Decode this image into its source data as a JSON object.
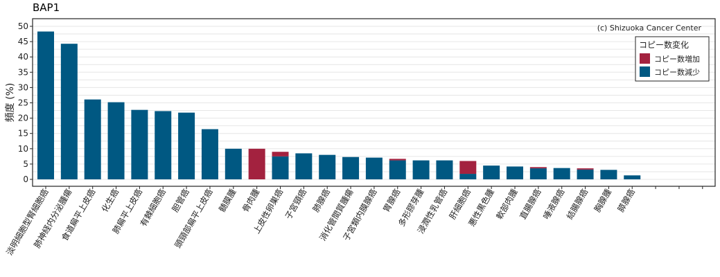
{
  "title": "BAP1",
  "credit": "(c) Shizuoka Cancer Center",
  "colors": {
    "gain": "#a3223f",
    "loss": "#005882",
    "grid": "#e6e6e6"
  },
  "chart_data": {
    "type": "bar",
    "stacked": true,
    "ylabel": "頻度 (%)",
    "ylim": [
      0,
      52
    ],
    "yticks": [
      0,
      5,
      10,
      15,
      20,
      25,
      30,
      35,
      40,
      45,
      50
    ],
    "grid": true,
    "legend": {
      "title": "コピー数変化",
      "placement": "top-right"
    },
    "categories": [
      "淡明細胞型腎細胞癌",
      "肺神経内分泌腫瘍",
      "食道扁平上皮癌",
      "化生癌",
      "肺扁平上皮癌",
      "有棘細胞癌",
      "胆管癌",
      "頭頸部扁平上皮癌",
      "髄膜腫",
      "骨肉腫",
      "上皮性卵巣癌",
      "子宮頸癌",
      "肺腺癌",
      "消化管間質腫瘍",
      "子宮類内膜腺癌",
      "胃腺癌",
      "多形膠芽腫",
      "浸潤性乳管癌",
      "肝細胞癌",
      "悪性黒色腫",
      "軟部肉腫",
      "直腸腺癌",
      "唾液腺癌",
      "結腸腺癌",
      "胸腺腫",
      "膵腺癌",
      "",
      "",
      "",
      ""
    ],
    "series": [
      {
        "name": "コピー数増加",
        "values": [
          0,
          0,
          0,
          0,
          0,
          0,
          0,
          0,
          0,
          10,
          1.5,
          0,
          0,
          0,
          0,
          0.5,
          0,
          0,
          4.2,
          0,
          0,
          0.4,
          0,
          0.4,
          0,
          0,
          0,
          0,
          0,
          0
        ]
      },
      {
        "name": "コピー数減少",
        "values": [
          48.3,
          44.3,
          26.1,
          25.2,
          22.7,
          22.3,
          21.8,
          16.4,
          10,
          0,
          7.5,
          8.5,
          8,
          7.3,
          7.1,
          6.2,
          6.2,
          6.2,
          1.8,
          4.5,
          4.2,
          3.6,
          3.7,
          3.2,
          3.1,
          1.3,
          0,
          0,
          0,
          0
        ]
      }
    ]
  }
}
